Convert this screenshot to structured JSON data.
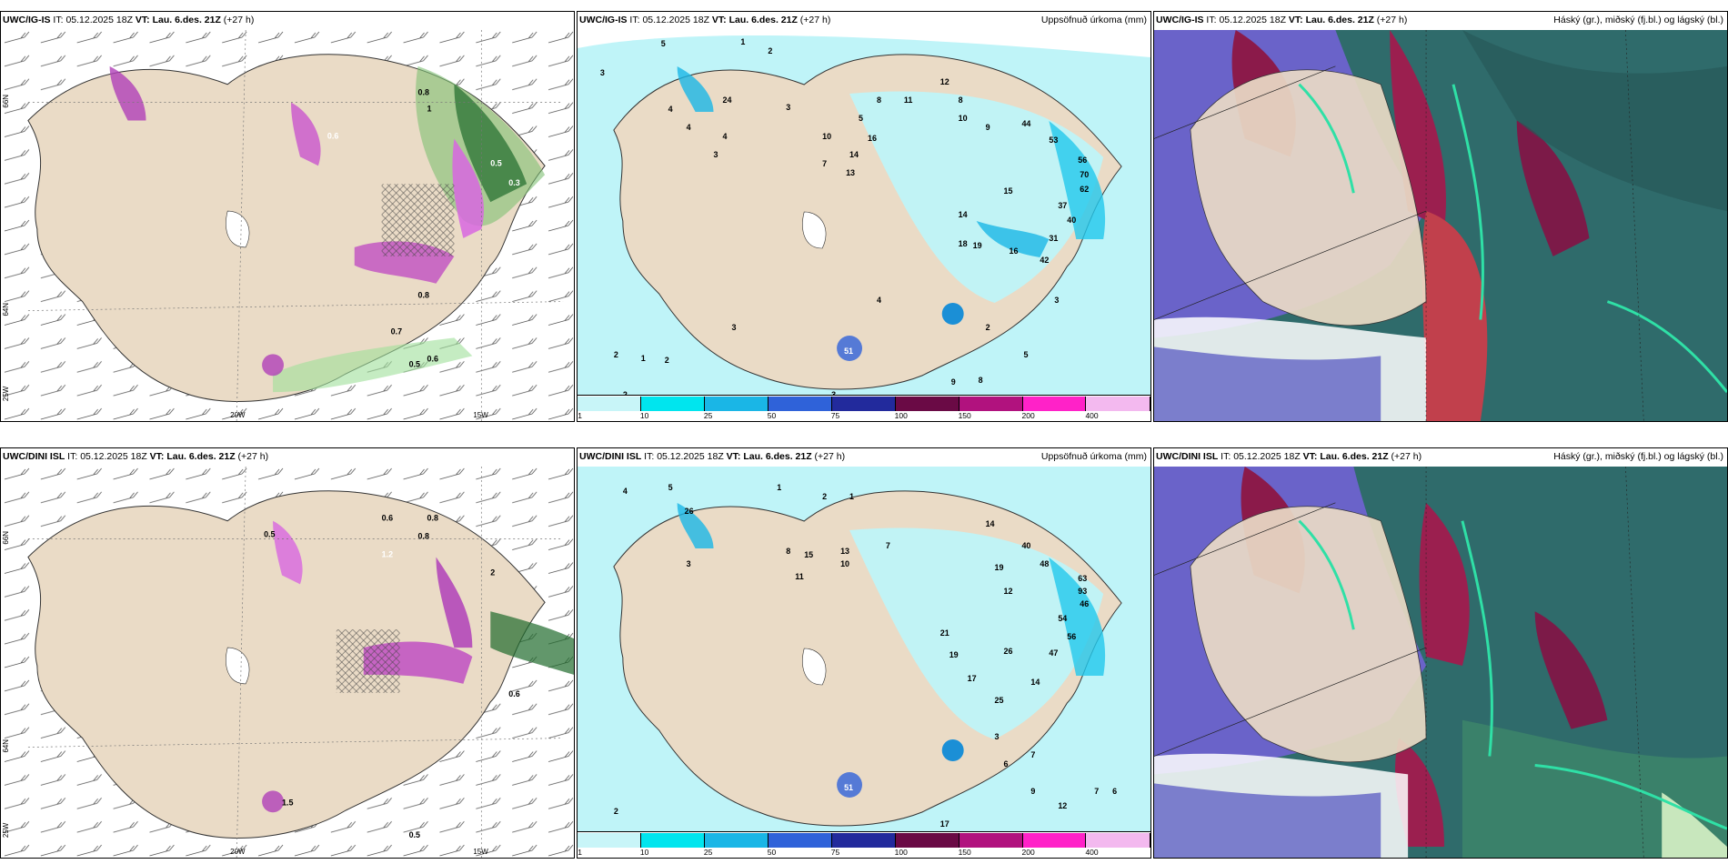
{
  "panels": [
    {
      "model": "UWC/IG-IS",
      "it_label": "IT:",
      "it": "05.12.2025 18Z",
      "vt_label": "VT:",
      "vt": "Lau. 6.des. 21Z",
      "lead": "(+27 h)",
      "right": ""
    },
    {
      "model": "UWC/IG-IS",
      "it_label": "IT:",
      "it": "05.12.2025 18Z",
      "vt_label": "VT:",
      "vt": "Lau. 6.des. 21Z",
      "lead": "(+27 h)",
      "right": "Uppsöfnuð úrkoma (mm)"
    },
    {
      "model": "UWC/IG-IS",
      "it_label": "IT:",
      "it": "05.12.2025 18Z",
      "vt_label": "VT:",
      "vt": "Lau. 6.des. 21Z",
      "lead": "(+27 h)",
      "right": "Háský (gr.), miðský (fj.bl.) og lágský (bl.)"
    },
    {
      "model": "UWC/DINI ISL",
      "it_label": "IT:",
      "it": "05.12.2025 18Z",
      "vt_label": "VT:",
      "vt": "Lau. 6.des. 21Z",
      "lead": "(+27 h)",
      "right": ""
    },
    {
      "model": "UWC/DINI ISL",
      "it_label": "IT:",
      "it": "05.12.2025 18Z",
      "vt_label": "VT:",
      "vt": "Lau. 6.des. 21Z",
      "lead": "(+27 h)",
      "right": "Uppsöfnuð úrkoma (mm)"
    },
    {
      "model": "UWC/DINI ISL",
      "it_label": "IT:",
      "it": "05.12.2025 18Z",
      "vt_label": "VT:",
      "vt": "Lau. 6.des. 21Z",
      "lead": "(+27 h)",
      "right": "Háský (gr.), miðský (fj.bl.) og lágský (bl.)"
    }
  ],
  "axes": {
    "lat_top": "66N",
    "lat_bottom": "64N",
    "lat_corner": "25W",
    "lon_left": "20W",
    "lon_right": "15W"
  },
  "legend": {
    "ticks": [
      "1",
      "10",
      "25",
      "50",
      "75",
      "100",
      "150",
      "200",
      "400"
    ],
    "colors": [
      "#c8f5f8",
      "#00e5ee",
      "#1ab6e6",
      "#2f62d9",
      "#222a9c",
      "#6a0a45",
      "#b1127e",
      "#ff22c8",
      "#f3b9ef"
    ]
  },
  "labels": {
    "p0": [
      "0.5",
      "0.6",
      "0.8",
      "0.7",
      "0.3",
      "0.5",
      "0.6",
      "0.8",
      "1"
    ],
    "p1": [
      "3",
      "5",
      "1",
      "2",
      "4",
      "4",
      "3",
      "4",
      "24",
      "3",
      "10",
      "7",
      "5",
      "8",
      "14",
      "13",
      "11",
      "16",
      "12",
      "8",
      "10",
      "9",
      "44",
      "53",
      "56",
      "70",
      "62",
      "37",
      "40",
      "31",
      "42",
      "18",
      "19",
      "15",
      "14",
      "16",
      "2",
      "1",
      "2",
      "3",
      "2",
      "9",
      "8",
      "5",
      "3",
      "51",
      "2",
      "3",
      "4"
    ],
    "p3": [
      "0.5",
      "0.6",
      "0.8",
      "0.5",
      "0.6",
      "0.8",
      "1.2",
      "2",
      "1.5"
    ],
    "p4": [
      "4",
      "5",
      "1",
      "26",
      "3",
      "2",
      "1",
      "8",
      "15",
      "13",
      "10",
      "7",
      "11",
      "14",
      "19",
      "12",
      "40",
      "48",
      "63",
      "93",
      "46",
      "54",
      "56",
      "47",
      "19",
      "17",
      "26",
      "21",
      "25",
      "14",
      "51",
      "2",
      "3",
      "6",
      "7",
      "9",
      "7",
      "6",
      "12",
      "17"
    ]
  }
}
